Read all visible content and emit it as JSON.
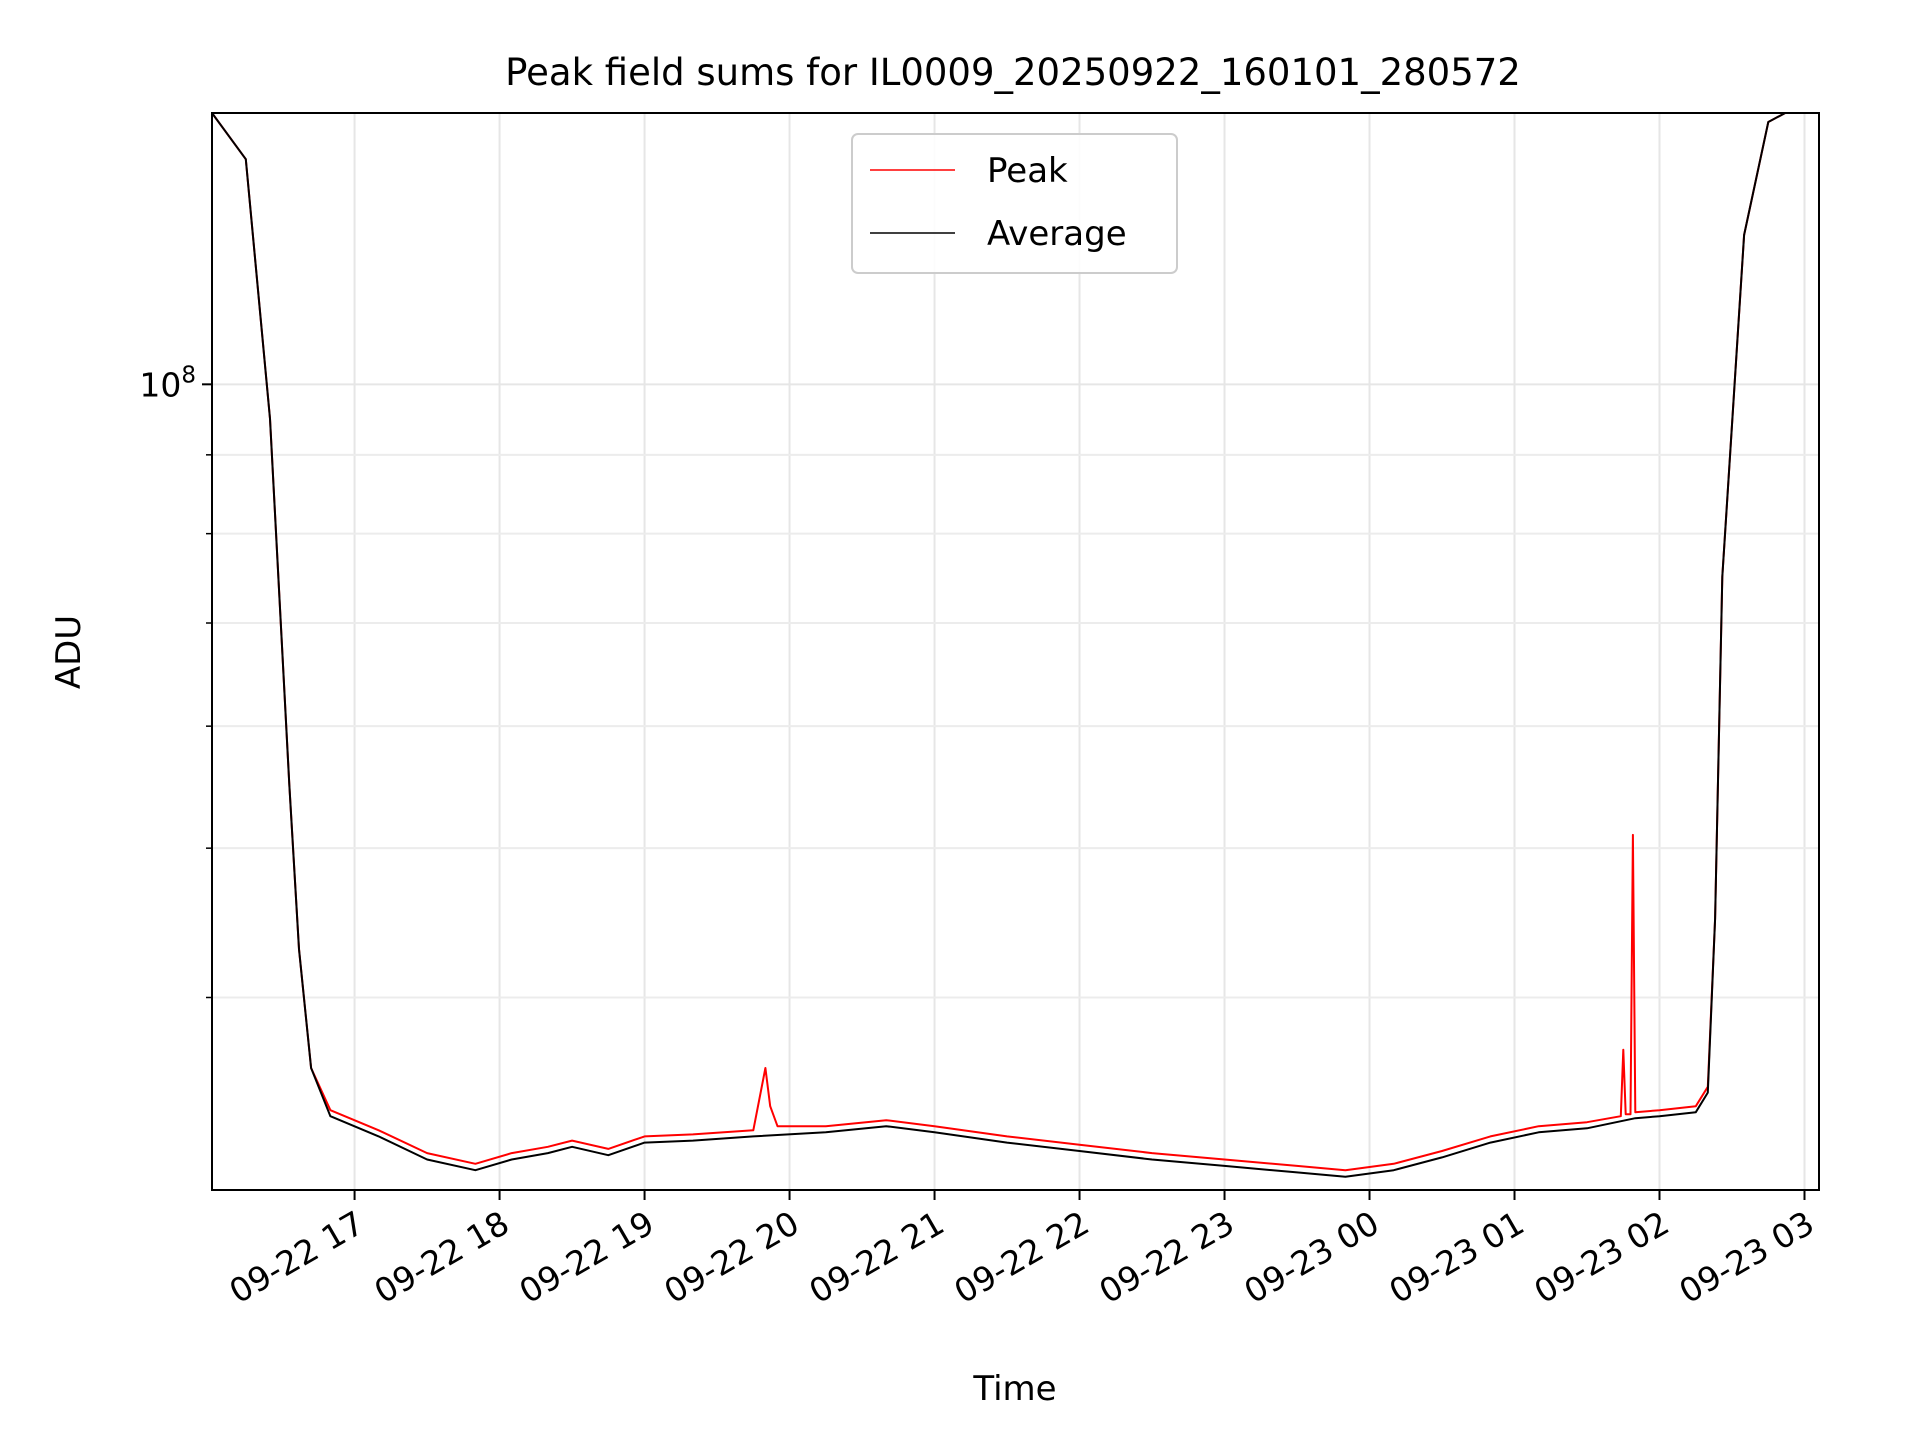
{
  "chart_data": {
    "type": "line",
    "title": "Peak field sums for IL0009_20250922_160101_280572",
    "xlabel": "Time",
    "ylabel": "ADU",
    "y_scale": "log",
    "ylim": [
      30000000,
      150000000
    ],
    "xlim": [
      "2025-09-22T16:01",
      "2025-09-23T03:06"
    ],
    "grid": true,
    "legend": {
      "placement": "upper center",
      "entries": [
        "Peak",
        "Average"
      ]
    },
    "x_tick_labels": [
      "09-22 17",
      "09-22 18",
      "09-22 19",
      "09-22 20",
      "09-22 21",
      "09-22 22",
      "09-22 23",
      "09-23 00",
      "09-23 01",
      "09-23 02",
      "09-23 03"
    ],
    "x_ticks": [
      "2025-09-22T17:00",
      "2025-09-22T18:00",
      "2025-09-22T19:00",
      "2025-09-22T20:00",
      "2025-09-22T21:00",
      "2025-09-22T22:00",
      "2025-09-22T23:00",
      "2025-09-23T00:00",
      "2025-09-23T01:00",
      "2025-09-23T02:00",
      "2025-09-23T03:00"
    ],
    "y_major_ticks": [
      {
        "value": 100000000,
        "base": "10",
        "exponent": "8"
      }
    ],
    "y_minor_ticks": [
      40000000,
      50000000,
      60000000,
      70000000,
      80000000,
      90000000,
      200000000
    ],
    "colors": {
      "Peak": "#ff0000",
      "Average": "#000000"
    },
    "series": [
      {
        "name": "Peak",
        "x": [
          "2025-09-22T16:01",
          "2025-09-22T16:15",
          "2025-09-22T16:25",
          "2025-09-22T16:33",
          "2025-09-22T16:37",
          "2025-09-22T16:42",
          "2025-09-22T16:50",
          "2025-09-22T17:10",
          "2025-09-22T17:30",
          "2025-09-22T17:50",
          "2025-09-22T18:05",
          "2025-09-22T18:20",
          "2025-09-22T18:30",
          "2025-09-22T18:45",
          "2025-09-22T19:00",
          "2025-09-22T19:20",
          "2025-09-22T19:45",
          "2025-09-22T19:50",
          "2025-09-22T19:52",
          "2025-09-22T19:55",
          "2025-09-22T20:15",
          "2025-09-22T20:40",
          "2025-09-22T21:00",
          "2025-09-22T21:30",
          "2025-09-22T22:00",
          "2025-09-22T22:30",
          "2025-09-22T23:00",
          "2025-09-22T23:30",
          "2025-09-22T23:50",
          "2025-09-23T00:10",
          "2025-09-23T00:30",
          "2025-09-23T00:50",
          "2025-09-23T01:10",
          "2025-09-23T01:30",
          "2025-09-23T01:44",
          "2025-09-23T01:45",
          "2025-09-23T01:46",
          "2025-09-23T01:48",
          "2025-09-23T01:49",
          "2025-09-23T01:50",
          "2025-09-23T02:00",
          "2025-09-23T02:15",
          "2025-09-23T02:20",
          "2025-09-23T02:23",
          "2025-09-23T02:26",
          "2025-09-23T02:35",
          "2025-09-23T02:45",
          "2025-09-23T02:52",
          "2025-09-23T02:56",
          "2025-09-23T03:06"
        ],
        "y": [
          150000000,
          140000000,
          95000000,
          55000000,
          43000000,
          36000000,
          33800000,
          32800000,
          31700000,
          31200000,
          31700000,
          32000000,
          32300000,
          31900000,
          32500000,
          32600000,
          32800000,
          36000000,
          34000000,
          33000000,
          33000000,
          33300000,
          33000000,
          32500000,
          32100000,
          31700000,
          31400000,
          31100000,
          30900000,
          31200000,
          31800000,
          32500000,
          33000000,
          33200000,
          33500000,
          37000000,
          33600000,
          33600000,
          51000000,
          33700000,
          33800000,
          34000000,
          35000000,
          45000000,
          75000000,
          125000000,
          148000000,
          150000000,
          150000000,
          150000000
        ]
      },
      {
        "name": "Average",
        "x": [
          "2025-09-22T16:01",
          "2025-09-22T16:15",
          "2025-09-22T16:25",
          "2025-09-22T16:33",
          "2025-09-22T16:37",
          "2025-09-22T16:42",
          "2025-09-22T16:50",
          "2025-09-22T17:10",
          "2025-09-22T17:30",
          "2025-09-22T17:50",
          "2025-09-22T18:05",
          "2025-09-22T18:20",
          "2025-09-22T18:30",
          "2025-09-22T18:45",
          "2025-09-22T19:00",
          "2025-09-22T19:20",
          "2025-09-22T19:45",
          "2025-09-22T20:15",
          "2025-09-22T20:40",
          "2025-09-22T21:00",
          "2025-09-22T21:30",
          "2025-09-22T22:00",
          "2025-09-22T22:30",
          "2025-09-22T23:00",
          "2025-09-22T23:30",
          "2025-09-22T23:50",
          "2025-09-23T00:10",
          "2025-09-23T00:30",
          "2025-09-23T00:50",
          "2025-09-23T01:10",
          "2025-09-23T01:30",
          "2025-09-23T01:50",
          "2025-09-23T02:00",
          "2025-09-23T02:15",
          "2025-09-23T02:20",
          "2025-09-23T02:23",
          "2025-09-23T02:26",
          "2025-09-23T02:35",
          "2025-09-23T02:45",
          "2025-09-23T02:52",
          "2025-09-23T02:56",
          "2025-09-23T03:06"
        ],
        "y": [
          150000000,
          140000000,
          95000000,
          55000000,
          43000000,
          36000000,
          33500000,
          32500000,
          31400000,
          30900000,
          31400000,
          31700000,
          32000000,
          31600000,
          32200000,
          32300000,
          32500000,
          32700000,
          33000000,
          32700000,
          32200000,
          31800000,
          31400000,
          31100000,
          30800000,
          30600000,
          30900000,
          31500000,
          32200000,
          32700000,
          32900000,
          33400000,
          33500000,
          33700000,
          34700000,
          45000000,
          75000000,
          125000000,
          148000000,
          150000000,
          150000000,
          150000000
        ]
      }
    ]
  }
}
